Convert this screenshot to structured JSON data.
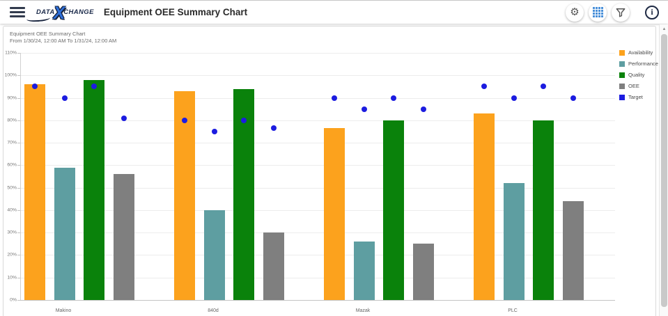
{
  "header": {
    "logo": {
      "data": "DATA",
      "x": "X",
      "change": "CHANGE"
    },
    "title": "Equipment OEE Summary Chart",
    "toolbar": {
      "settings_icon": "gear-icon",
      "table_view_icon": "table-grid-icon",
      "filter_icon": "filter-funnel-icon",
      "info_icon": "info-icon"
    }
  },
  "card": {
    "title": "Equipment OEE Summary Chart",
    "subtitle": "From 1/30/24, 12:00 AM To 1/31/24, 12:00 AM"
  },
  "chart_data": {
    "type": "bar",
    "title": "Equipment OEE Summary Chart",
    "subtitle": "From 1/30/24, 12:00 AM To 1/31/24, 12:00 AM",
    "categories": [
      "Makino",
      "840d",
      "Mazak",
      "PLC"
    ],
    "series": [
      {
        "name": "Availability",
        "color": "#FCA21D",
        "values": [
          96,
          93,
          76.5,
          83
        ]
      },
      {
        "name": "Performance",
        "color": "#5E9EA1",
        "values": [
          59,
          40,
          26,
          52
        ]
      },
      {
        "name": "Quality",
        "color": "#0A820B",
        "values": [
          98,
          94,
          80,
          80
        ]
      },
      {
        "name": "OEE",
        "color": "#7F7F7F",
        "values": [
          56,
          30,
          25,
          44
        ]
      }
    ],
    "target_series": {
      "name": "Target",
      "color": "#1C1CE0",
      "note": "one point per metric bar, per category",
      "values_by_category": [
        [
          95,
          90,
          95,
          81
        ],
        [
          80,
          75,
          80,
          76.5
        ],
        [
          90,
          85,
          90,
          85
        ],
        [
          95,
          90,
          95,
          90
        ]
      ]
    },
    "ylim": [
      0,
      110
    ],
    "ytick_step": 10,
    "ytick_suffix": "%",
    "grid": true,
    "legend_position": "right",
    "legend_entries": [
      "Availability",
      "Performance",
      "Quality",
      "OEE",
      "Target"
    ]
  }
}
